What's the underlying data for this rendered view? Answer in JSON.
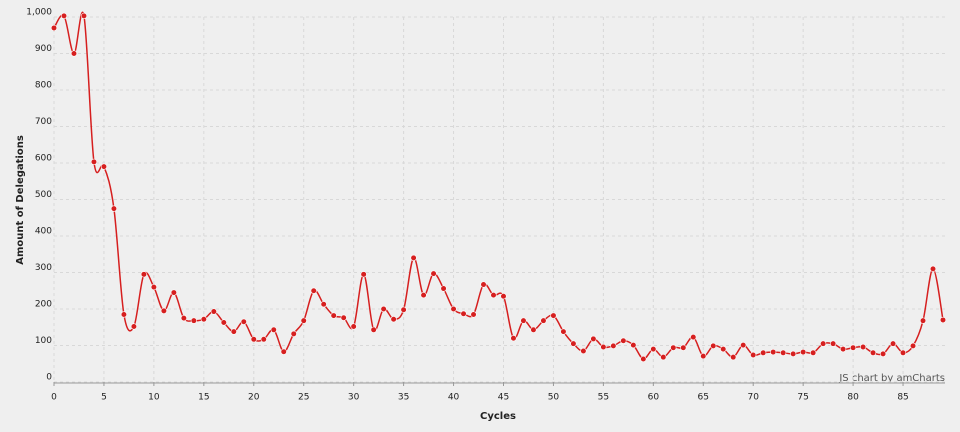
{
  "chart_data": {
    "type": "line",
    "y_label": "Amount of Delegations",
    "x_label": "Cycles",
    "credit": "JS chart by amCharts",
    "x": [
      0,
      1,
      2,
      3,
      4,
      5,
      6,
      7,
      8,
      9,
      10,
      11,
      12,
      13,
      14,
      15,
      16,
      17,
      18,
      19,
      20,
      21,
      22,
      23,
      24,
      25,
      26,
      27,
      28,
      29,
      30,
      31,
      32,
      33,
      34,
      35,
      36,
      37,
      38,
      39,
      40,
      41,
      42,
      43,
      44,
      45,
      46,
      47,
      48,
      49,
      50,
      51,
      52,
      53,
      54,
      55,
      56,
      57,
      58,
      59,
      60,
      61,
      62,
      63,
      64,
      65,
      66,
      67,
      68,
      69,
      70,
      71,
      72,
      73,
      74,
      75,
      76,
      77,
      78,
      79,
      80,
      81,
      82,
      83,
      84,
      85,
      86,
      87,
      88,
      89
    ],
    "values": [
      970,
      1003,
      900,
      1003,
      603,
      590,
      475,
      185,
      152,
      295,
      260,
      195,
      245,
      175,
      168,
      172,
      193,
      163,
      138,
      165,
      117,
      117,
      143,
      83,
      132,
      168,
      250,
      213,
      182,
      176,
      152,
      295,
      143,
      200,
      172,
      198,
      340,
      238,
      297,
      256,
      200,
      187,
      185,
      267,
      238,
      235,
      120,
      168,
      143,
      168,
      182,
      138,
      105,
      85,
      118,
      96,
      99,
      113,
      101,
      63,
      90,
      68,
      94,
      94,
      123,
      71,
      99,
      90,
      68,
      101,
      74,
      80,
      82,
      80,
      77,
      82,
      80,
      105,
      105,
      90,
      94,
      96,
      80,
      77,
      105,
      80,
      99,
      168,
      310,
      170
    ],
    "color": "#d61f1f",
    "xlim": [
      0,
      89
    ],
    "ylim": [
      0,
      1000
    ],
    "xticks": [
      0,
      5,
      10,
      15,
      20,
      25,
      30,
      35,
      40,
      45,
      50,
      55,
      60,
      65,
      70,
      75,
      80,
      85
    ],
    "yticks": [
      0,
      100,
      200,
      300,
      400,
      500,
      600,
      700,
      800,
      900,
      {
        "value": 1000,
        "label": "1,000"
      }
    ],
    "grid": true
  }
}
